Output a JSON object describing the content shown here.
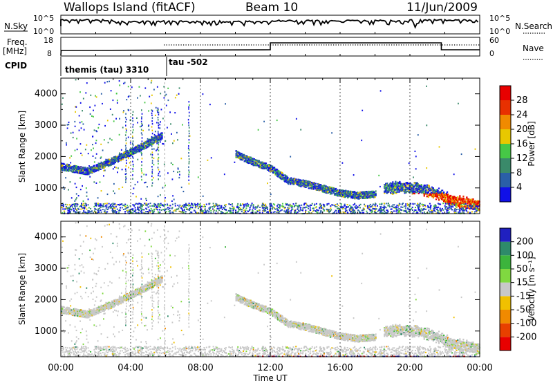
{
  "header": {
    "title": "Wallops Island (fitACF)",
    "beam": "Beam 10",
    "date": "11/Jun/2009"
  },
  "panels": {
    "nsky_label": "N.Sky",
    "nsky_ticks": [
      "10^5",
      "10^0"
    ],
    "nsearch_label": "N.Search",
    "nsearch_ticks": [
      "10^5",
      "10^0"
    ],
    "freq_label": "Freq.",
    "freq_unit": "[MHz]",
    "freq_ticks": [
      "18",
      "8"
    ],
    "nave_label": "Nave",
    "nave_ticks": [
      "60",
      "0"
    ],
    "cpid_label": "CPID",
    "cpid_modes": [
      "themis (tau) 3310",
      "tau -502"
    ]
  },
  "colors": {
    "axis": "#000000",
    "noise": "#9a9a9a",
    "ground_scatter_gray": "#c8c8c8"
  },
  "chart_data": [
    {
      "type": "heatmap",
      "name": "power-panel",
      "xlabel": "",
      "ylabel": "Slant Range [km]",
      "xlim": [
        "00:00",
        "24:00"
      ],
      "ylim": [
        180,
        4500
      ],
      "yticks": [
        "1000",
        "2000",
        "3000",
        "4000"
      ],
      "colorbar": {
        "label": "Power [dB]",
        "ticks": [
          "4",
          "8",
          "12",
          "16",
          "20",
          "24",
          "28"
        ],
        "colors": [
          "#1010e8",
          "#2a5fa8",
          "#3a8a6a",
          "#46c846",
          "#e8c800",
          "#f08a00",
          "#e83000",
          "#e80000"
        ]
      },
      "bands": [
        {
          "t": [
            0.0,
            1.5,
            3.0,
            4.5,
            5.8
          ],
          "r": [
            1700,
            1550,
            1900,
            2300,
            2700
          ]
        },
        {
          "t": [
            10.0,
            11.0,
            12.0,
            13.0,
            14.0,
            15.0,
            16.0,
            17.0,
            18.0
          ],
          "r": [
            2100,
            1850,
            1650,
            1250,
            1150,
            1000,
            850,
            780,
            820
          ]
        },
        {
          "t": [
            18.5,
            19.5,
            20.5,
            21.5,
            22.5,
            23.5,
            24.0
          ],
          "r": [
            1000,
            1050,
            1000,
            850,
            600,
            500,
            450
          ]
        }
      ]
    },
    {
      "type": "heatmap",
      "name": "velocity-panel",
      "xlabel": "Time UT",
      "ylabel": "Slant Range [km]",
      "xlim": [
        "00:00",
        "24:00"
      ],
      "ylim": [
        180,
        4500
      ],
      "xticks": [
        "00:00",
        "04:00",
        "08:00",
        "12:00",
        "16:00",
        "20:00",
        "00:00"
      ],
      "yticks": [
        "1000",
        "2000",
        "3000",
        "4000"
      ],
      "colorbar": {
        "label": "Velocity [m s⁻¹]",
        "ticks": [
          "200",
          "100",
          "50",
          "15",
          "-15",
          "-50",
          "-100",
          "-200"
        ],
        "colors": [
          "#2020c0",
          "#2e8a6a",
          "#3cb43c",
          "#80d840",
          "#c8c8c8",
          "#f0c000",
          "#f08a00",
          "#e84000",
          "#e80000"
        ]
      }
    }
  ]
}
